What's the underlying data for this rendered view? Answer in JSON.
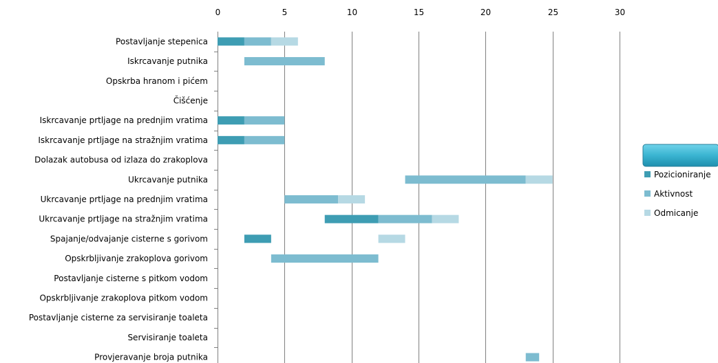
{
  "chart_data": {
    "type": "bar",
    "orientation": "horizontal",
    "stacked": true,
    "title": "",
    "xlabel": "",
    "ylabel": "",
    "xlim": [
      0,
      30
    ],
    "x_ticks": [
      0,
      5,
      10,
      15,
      20,
      25,
      30
    ],
    "x_axis_position": "top",
    "grid": true,
    "legend_position": "right",
    "legend_title": "",
    "categories": [
      "Postavljanje stepenica",
      "Iskrcavanje putnika",
      "Opskrba hranom i pićem",
      "Čišćenje",
      "Iskrcavanje prtljage na prednjim vratima",
      "Iskrcavanje prtljage na stražnjim vratima",
      "Dolazak autobusa od izlaza do zrakoplova",
      "Ukrcavanje putnika",
      "Ukrcavanje prtljage na prednjim vratima",
      "Ukrcavanje prtljage na stražnjim vratima",
      "Spajanje/odvajanje cisterne s gorivom",
      "Opskrbljivanje zrakoplova gorivom",
      "Postavljanje cisterne s pitkom vodom",
      "Opskrbljivanje zrakoplova pitkom vodom",
      "Postavljanje cisterne za servisiranje toaleta",
      "Servisiranje toaleta",
      "Provjeravanje broja putnika"
    ],
    "series": [
      {
        "name": "Pozicioniranje",
        "color": "#3e9db3",
        "segments": [
          [
            0,
            2
          ],
          null,
          null,
          null,
          [
            0,
            2
          ],
          [
            0,
            2
          ],
          null,
          null,
          null,
          [
            8,
            12
          ],
          [
            2,
            4
          ],
          null,
          null,
          null,
          null,
          null,
          null
        ]
      },
      {
        "name": "Aktivnost",
        "color": "#7dbcd0",
        "segments": [
          [
            2,
            4
          ],
          [
            2,
            8
          ],
          null,
          null,
          [
            2,
            5
          ],
          [
            2,
            5
          ],
          null,
          [
            14,
            23
          ],
          [
            5,
            9
          ],
          [
            12,
            16
          ],
          null,
          [
            4,
            12
          ],
          null,
          null,
          null,
          null,
          [
            23,
            24
          ]
        ]
      },
      {
        "name": "Odmicanje",
        "color": "#b6d9e4",
        "segments": [
          [
            4,
            6
          ],
          null,
          null,
          null,
          null,
          null,
          null,
          [
            23,
            25
          ],
          [
            9,
            11
          ],
          [
            16,
            18
          ],
          [
            12,
            14
          ],
          null,
          null,
          null,
          null,
          null,
          null
        ]
      }
    ],
    "colors": {
      "grid": "#7f7f7f",
      "legend_header": "#3ab4d1"
    }
  }
}
